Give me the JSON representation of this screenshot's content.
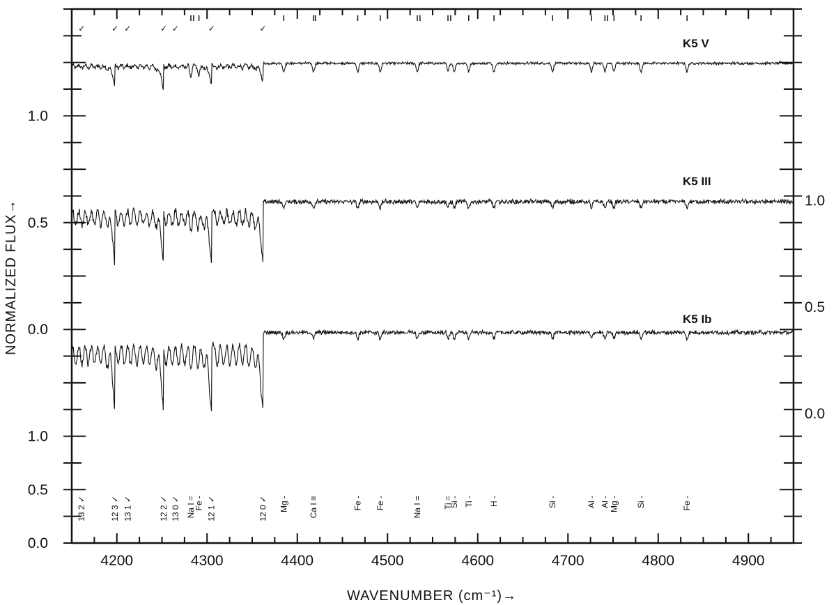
{
  "chart_data": {
    "type": "line",
    "xlabel": "WAVENUMBER (cm⁻¹)→",
    "ylabel": "NORMALIZED FLUX→",
    "xlim": [
      4150,
      4950
    ],
    "x_ticks": [
      4200,
      4300,
      4400,
      4500,
      4600,
      4700,
      4800,
      4900
    ],
    "left_ylim": [
      0.0,
      1.25
    ],
    "left_y_ticks": [
      {
        "label": "0.0",
        "value": 0.0
      },
      {
        "label": "0.5",
        "value": 0.125
      },
      {
        "label": "1.0",
        "value": 0.25
      },
      {
        "label": "0.0",
        "value": 0.5
      },
      {
        "label": "0.5",
        "value": 0.75
      },
      {
        "label": "1.0",
        "value": 1.0
      }
    ],
    "right_y_ticks": [
      {
        "label": "0.0",
        "value": 0.625
      },
      {
        "label": "0.5",
        "value": 0.75
      },
      {
        "label": "1.0",
        "value": 0.875
      }
    ],
    "series": [
      {
        "name": "K5 V",
        "continuum": 1.0,
        "deep_features": [
          [
            4198,
            0.8
          ],
          [
            4252,
            0.75
          ],
          [
            4305,
            0.82
          ],
          [
            4362,
            0.86
          ],
          [
            4533,
            0.86
          ],
          [
            4726,
            0.87
          ]
        ]
      },
      {
        "name": "K5 III",
        "continuum": 0.95,
        "deep_features": [
          [
            4198,
            0.56
          ],
          [
            4252,
            0.57
          ],
          [
            4305,
            0.55
          ],
          [
            4362,
            0.57
          ],
          [
            4533,
            0.88
          ]
        ]
      },
      {
        "name": "K5 Ib",
        "continuum": 1.0,
        "deep_features": [
          [
            4198,
            0.49
          ],
          [
            4252,
            0.49
          ],
          [
            4305,
            0.45
          ],
          [
            4362,
            0.47
          ],
          [
            4533,
            0.84
          ]
        ]
      }
    ],
    "band_marks_top": [
      "✓",
      "✓",
      "✓",
      "✓",
      "✓",
      "✓",
      "✓"
    ],
    "line_ids": [
      {
        "label": "13 2 ✓",
        "x": 4161
      },
      {
        "label": "12 3 ✓",
        "x": 4198
      },
      {
        "label": "13 1 ✓",
        "x": 4212
      },
      {
        "label": "12 2 ✓",
        "x": 4252
      },
      {
        "label": "13 0 ✓",
        "x": 4265
      },
      {
        "label": "Na I =",
        "x": 4282
      },
      {
        "label": "Fe -",
        "x": 4291
      },
      {
        "label": "12 1 ✓",
        "x": 4305
      },
      {
        "label": "12 0 ✓",
        "x": 4362
      },
      {
        "label": "Mg -",
        "x": 4385
      },
      {
        "label": "Ca I ≡",
        "x": 4418
      },
      {
        "label": "Fe -",
        "x": 4467
      },
      {
        "label": "Fe -",
        "x": 4492
      },
      {
        "label": "Na I =",
        "x": 4533
      },
      {
        "label": "Ti =",
        "x": 4567
      },
      {
        "label": "Si -",
        "x": 4574
      },
      {
        "label": "Ti -",
        "x": 4590
      },
      {
        "label": "H -",
        "x": 4618
      },
      {
        "label": "Si -",
        "x": 4683
      },
      {
        "label": "Al -",
        "x": 4726
      },
      {
        "label": "Al -",
        "x": 4741
      },
      {
        "label": "Mg -",
        "x": 4751
      },
      {
        "label": "Si -",
        "x": 4781
      },
      {
        "label": "Fe -",
        "x": 4832
      }
    ]
  }
}
